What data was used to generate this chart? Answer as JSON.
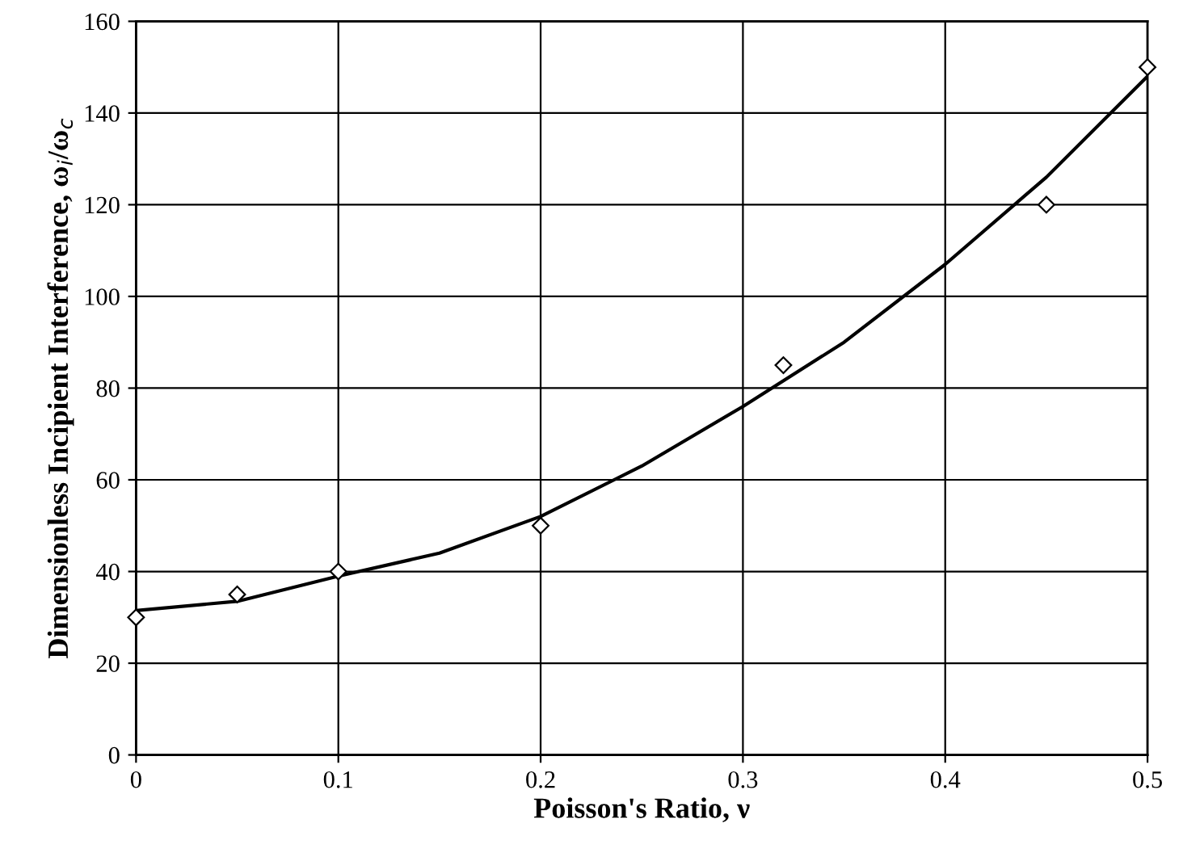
{
  "chart_data": {
    "type": "scatter",
    "xlabel": "Poisson's Ratio, ν",
    "ylabel": "Dimensionless Incipient Interference, ω$_{i}$/ω$_{c}$",
    "xlim": [
      0,
      0.5
    ],
    "ylim": [
      0,
      160
    ],
    "xticks": [
      0,
      0.1,
      0.2,
      0.3,
      0.4,
      0.5
    ],
    "yticks": [
      0,
      20,
      40,
      60,
      80,
      100,
      120,
      140,
      160
    ],
    "grid": true,
    "series": [
      {
        "marker": "diamond",
        "color": "#000000",
        "x": [
          0,
          0.05,
          0.1,
          0.2,
          0.32,
          0.45,
          0.5
        ],
        "values": [
          30,
          35,
          40,
          50,
          85,
          120,
          150
        ]
      },
      {
        "type": "line",
        "marker": "none",
        "line_style": "solid",
        "color": "#000000",
        "x": [
          0,
          0.05,
          0.1,
          0.15,
          0.2,
          0.25,
          0.3,
          0.35,
          0.4,
          0.45,
          0.5
        ],
        "values": [
          31.5,
          33.5,
          39,
          44,
          52,
          63,
          76,
          90,
          107,
          126,
          148
        ]
      }
    ]
  }
}
